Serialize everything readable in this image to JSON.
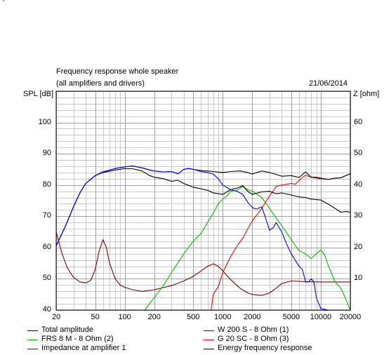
{
  "header": {
    "title": "Frequency response whole speaker",
    "subtitle": "(all amplifiers and drivers)",
    "date": "21/06/2014",
    "left_axis_label": "SPL [dB]",
    "right_axis_label": "Z [ohm]",
    "corner_mark": "'"
  },
  "chart_data": {
    "type": "line",
    "title": "Frequency response whole speaker",
    "subtitle": "(all amplifiers and drivers)",
    "xscale": "log",
    "xlim": [
      20,
      20000
    ],
    "ylim": [
      40,
      110
    ],
    "y2lim": [
      0,
      70
    ],
    "ylabel": "SPL [dB]",
    "y2label": "Z [ohm]",
    "grid": true,
    "legend_placement": "bottom",
    "x_ticks": [
      {
        "value": 20,
        "label": "20"
      },
      {
        "value": 50,
        "label": "50"
      },
      {
        "value": 100,
        "label": "100"
      },
      {
        "value": 200,
        "label": "200"
      },
      {
        "value": 500,
        "label": "500"
      },
      {
        "value": 1000,
        "label": "1000"
      },
      {
        "value": 2000,
        "label": "2000"
      },
      {
        "value": 5000,
        "label": "5000"
      },
      {
        "value": 10000,
        "label": "10000"
      },
      {
        "value": 20000,
        "label": "20000"
      }
    ],
    "y_ticks": [
      {
        "value": 40,
        "label": "40"
      },
      {
        "value": 50,
        "label": "50"
      },
      {
        "value": 60,
        "label": "60"
      },
      {
        "value": 70,
        "label": "70"
      },
      {
        "value": 80,
        "label": "80"
      },
      {
        "value": 90,
        "label": "90"
      },
      {
        "value": 100,
        "label": "100"
      }
    ],
    "y2_ticks": [
      {
        "value": 10,
        "label": "10"
      },
      {
        "value": 20,
        "label": "20"
      },
      {
        "value": 30,
        "label": "30"
      },
      {
        "value": 40,
        "label": "40"
      },
      {
        "value": 50,
        "label": "50"
      },
      {
        "value": 60,
        "label": "60"
      }
    ],
    "series": [
      {
        "name": "Total amplitude",
        "color": "#000000",
        "axis": "left",
        "points": [
          [
            20,
            60.5
          ],
          [
            25,
            67
          ],
          [
            30,
            73
          ],
          [
            35,
            77.5
          ],
          [
            40,
            80.5
          ],
          [
            50,
            83
          ],
          [
            60,
            84.2
          ],
          [
            80,
            85.3
          ],
          [
            100,
            85.8
          ],
          [
            120,
            86.1
          ],
          [
            150,
            85.5
          ],
          [
            180,
            84.8
          ],
          [
            200,
            84.5
          ],
          [
            250,
            84.2
          ],
          [
            300,
            84.3
          ],
          [
            350,
            83.6
          ],
          [
            400,
            85
          ],
          [
            450,
            85.3
          ],
          [
            500,
            85
          ],
          [
            600,
            84.6
          ],
          [
            700,
            84.5
          ],
          [
            800,
            84.3
          ],
          [
            1000,
            84
          ],
          [
            1200,
            84.3
          ],
          [
            1500,
            84.5
          ],
          [
            1800,
            84
          ],
          [
            2000,
            83.5
          ],
          [
            2500,
            84.5
          ],
          [
            3000,
            84
          ],
          [
            3500,
            83.4
          ],
          [
            4000,
            82.8
          ],
          [
            5000,
            83
          ],
          [
            6000,
            82.4
          ],
          [
            7000,
            84.2
          ],
          [
            8000,
            82.5
          ],
          [
            9000,
            82.5
          ],
          [
            10000,
            82.2
          ],
          [
            12000,
            81.8
          ],
          [
            14000,
            82.2
          ],
          [
            16000,
            82.3
          ],
          [
            18000,
            83
          ],
          [
            20000,
            83.6
          ]
        ]
      },
      {
        "name": "W 200 S - 8 Ohm (1)",
        "color": "#0000ff",
        "axis": "left",
        "points": [
          [
            20,
            60.5
          ],
          [
            25,
            67
          ],
          [
            30,
            73
          ],
          [
            35,
            77.5
          ],
          [
            40,
            80.5
          ],
          [
            50,
            83
          ],
          [
            60,
            84.2
          ],
          [
            80,
            85.3
          ],
          [
            100,
            85.8
          ],
          [
            120,
            86.1
          ],
          [
            150,
            85.5
          ],
          [
            180,
            84.8
          ],
          [
            200,
            84.5
          ],
          [
            250,
            84.2
          ],
          [
            300,
            84.3
          ],
          [
            350,
            83.6
          ],
          [
            400,
            85
          ],
          [
            450,
            85.3
          ],
          [
            500,
            85
          ],
          [
            600,
            84.3
          ],
          [
            700,
            84
          ],
          [
            800,
            83.5
          ],
          [
            900,
            82
          ],
          [
            1000,
            80
          ],
          [
            1200,
            78.5
          ],
          [
            1400,
            78
          ],
          [
            1600,
            77
          ],
          [
            1800,
            74.5
          ],
          [
            2000,
            72.8
          ],
          [
            2200,
            72.3
          ],
          [
            2500,
            73
          ],
          [
            2700,
            70
          ],
          [
            3000,
            65.5
          ],
          [
            3300,
            66.5
          ],
          [
            3500,
            68
          ],
          [
            4000,
            65
          ],
          [
            4500,
            61
          ],
          [
            5000,
            58
          ],
          [
            6000,
            54
          ],
          [
            6500,
            53
          ],
          [
            7000,
            49
          ],
          [
            7500,
            49
          ],
          [
            8000,
            50
          ],
          [
            8500,
            49
          ],
          [
            9000,
            44
          ],
          [
            10000,
            40.5
          ],
          [
            12000,
            40
          ],
          [
            20000,
            40
          ]
        ]
      },
      {
        "name": "FRS 8 M - 8 Ohm (2)",
        "color": "#00c000",
        "axis": "left",
        "points": [
          [
            20,
            40
          ],
          [
            160,
            40
          ],
          [
            200,
            44
          ],
          [
            250,
            48
          ],
          [
            300,
            52
          ],
          [
            400,
            58
          ],
          [
            500,
            62
          ],
          [
            600,
            64.5
          ],
          [
            700,
            68
          ],
          [
            800,
            71
          ],
          [
            900,
            74
          ],
          [
            1000,
            75.5
          ],
          [
            1100,
            76.5
          ],
          [
            1200,
            78
          ],
          [
            1400,
            78.3
          ],
          [
            1600,
            79.5
          ],
          [
            1800,
            78.5
          ],
          [
            2000,
            78
          ],
          [
            2500,
            76
          ],
          [
            3000,
            72.5
          ],
          [
            3500,
            69.5
          ],
          [
            4000,
            67
          ],
          [
            5000,
            62.5
          ],
          [
            6000,
            59
          ],
          [
            7000,
            58
          ],
          [
            8000,
            56.5
          ],
          [
            9000,
            58
          ],
          [
            10000,
            59.3
          ],
          [
            11000,
            57.5
          ],
          [
            12000,
            54
          ],
          [
            14000,
            49
          ],
          [
            16000,
            47
          ],
          [
            18000,
            43.5
          ],
          [
            20000,
            40
          ]
        ]
      },
      {
        "name": "G 20 SC - 8 Ohm (3)",
        "color": "#ff0000",
        "axis": "left",
        "points": [
          [
            20,
            40
          ],
          [
            760,
            40
          ],
          [
            800,
            45
          ],
          [
            900,
            47.5
          ],
          [
            1000,
            52
          ],
          [
            1200,
            57
          ],
          [
            1400,
            60.5
          ],
          [
            1600,
            63
          ],
          [
            1800,
            66
          ],
          [
            2000,
            68.5
          ],
          [
            2500,
            72.5
          ],
          [
            3000,
            76.5
          ],
          [
            3500,
            79.5
          ],
          [
            4000,
            80
          ],
          [
            5000,
            80.5
          ],
          [
            5500,
            80.3
          ],
          [
            6000,
            81.5
          ],
          [
            7000,
            83.2
          ],
          [
            8000,
            82.5
          ],
          [
            9000,
            82.2
          ],
          [
            10000,
            82
          ],
          [
            12000,
            81.8
          ],
          [
            14000,
            82.2
          ],
          [
            16000,
            82.3
          ],
          [
            18000,
            83
          ],
          [
            20000,
            83.6
          ]
        ]
      },
      {
        "name": "Impedance at amplifier 1",
        "color": "#800000",
        "axis": "right",
        "points": [
          [
            20,
            25
          ],
          [
            23,
            18
          ],
          [
            26,
            13.5
          ],
          [
            30,
            10.5
          ],
          [
            35,
            9
          ],
          [
            40,
            8.7
          ],
          [
            45,
            9.5
          ],
          [
            50,
            13
          ],
          [
            55,
            19
          ],
          [
            60,
            22.5
          ],
          [
            65,
            20
          ],
          [
            70,
            15
          ],
          [
            80,
            10
          ],
          [
            90,
            8
          ],
          [
            100,
            7.3
          ],
          [
            120,
            6.5
          ],
          [
            150,
            6
          ],
          [
            200,
            6.5
          ],
          [
            300,
            7.8
          ],
          [
            400,
            9.3
          ],
          [
            500,
            10.8
          ],
          [
            600,
            12.5
          ],
          [
            700,
            14
          ],
          [
            800,
            14.8
          ],
          [
            900,
            14
          ],
          [
            1000,
            12.5
          ],
          [
            1200,
            9.8
          ],
          [
            1500,
            7
          ],
          [
            1800,
            5.5
          ],
          [
            2000,
            5
          ],
          [
            2500,
            4.7
          ],
          [
            3000,
            5.5
          ],
          [
            3500,
            7
          ],
          [
            4000,
            8.5
          ],
          [
            5000,
            9.3
          ],
          [
            7000,
            9.1
          ],
          [
            10000,
            9
          ],
          [
            20000,
            9
          ]
        ]
      },
      {
        "name": "Energy frequency response",
        "color": "#000000",
        "axis": "left",
        "points": [
          [
            20,
            60.5
          ],
          [
            25,
            67
          ],
          [
            30,
            73
          ],
          [
            35,
            77.5
          ],
          [
            40,
            80.5
          ],
          [
            50,
            83
          ],
          [
            60,
            84
          ],
          [
            80,
            84.8
          ],
          [
            100,
            85.2
          ],
          [
            120,
            85.2
          ],
          [
            150,
            84.5
          ],
          [
            180,
            83
          ],
          [
            200,
            82.5
          ],
          [
            250,
            82
          ],
          [
            300,
            81.2
          ],
          [
            350,
            81.5
          ],
          [
            400,
            80.5
          ],
          [
            500,
            79.3
          ],
          [
            600,
            78.8
          ],
          [
            700,
            78.3
          ],
          [
            800,
            77.5
          ],
          [
            1000,
            77
          ],
          [
            1200,
            78.5
          ],
          [
            1400,
            79
          ],
          [
            1600,
            79.8
          ],
          [
            1800,
            78
          ],
          [
            2000,
            77
          ],
          [
            2500,
            77.8
          ],
          [
            3000,
            78
          ],
          [
            3500,
            77.2
          ],
          [
            4000,
            77.5
          ],
          [
            5000,
            76.8
          ],
          [
            6000,
            76.2
          ],
          [
            7000,
            76
          ],
          [
            8000,
            75.5
          ],
          [
            10000,
            75.2
          ],
          [
            12000,
            73.8
          ],
          [
            14000,
            72.5
          ],
          [
            16000,
            71.3
          ],
          [
            18000,
            71.5
          ],
          [
            20000,
            71.3
          ]
        ]
      }
    ]
  },
  "legend": [
    {
      "label": "Total amplitude",
      "color": "#000000"
    },
    {
      "label": "W 200 S - 8 Ohm (1)",
      "color": "#0000ff"
    },
    {
      "label": "FRS 8 M - 8 Ohm (2)",
      "color": "#00c000"
    },
    {
      "label": "G 20 SC - 8 Ohm (3)",
      "color": "#ff0000"
    },
    {
      "label": "Impedance at amplifier 1",
      "color": "#800000"
    },
    {
      "label": "Energy frequency response",
      "color": "#000000"
    }
  ]
}
